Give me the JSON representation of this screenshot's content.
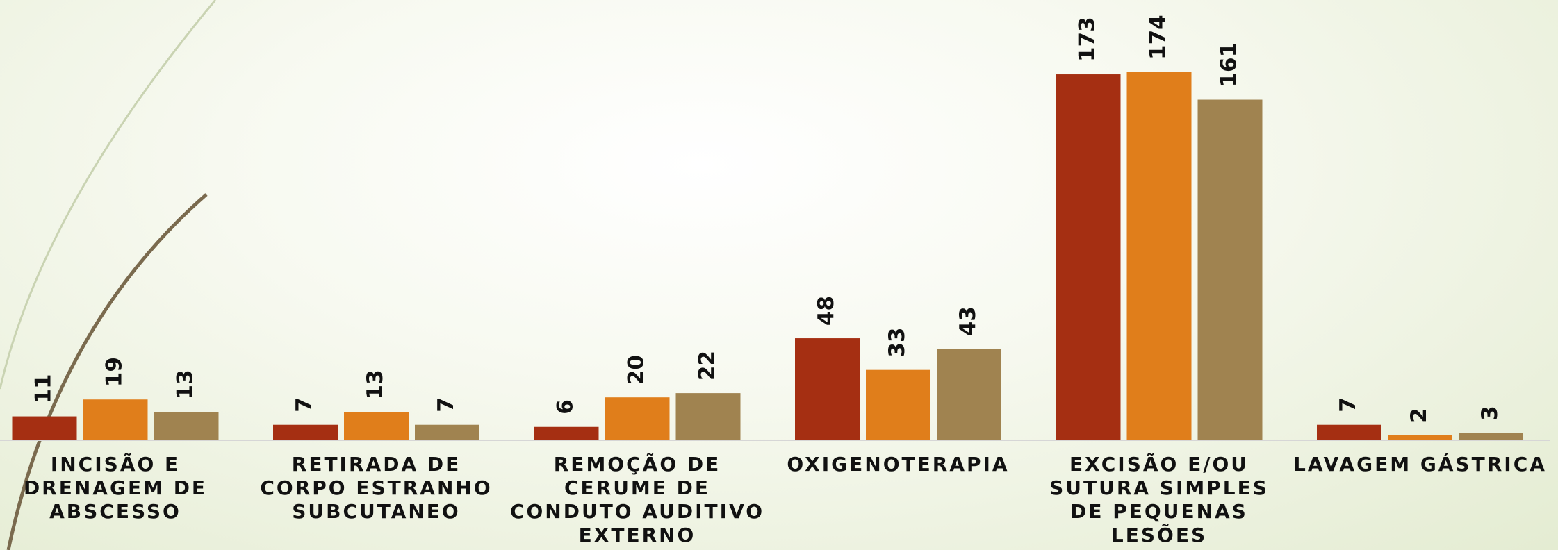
{
  "chart_data": {
    "type": "bar",
    "categories": [
      "INCISÃO E DRENAGEM DE ABSCESSO",
      "RETIRADA DE CORPO ESTRANHO SUBCUTANEO",
      "REMOÇÃO DE CERUME DE CONDUTO AUDITIVO EXTERNO",
      "OXIGENOTERAPIA",
      "EXCISÃO E/OU SUTURA SIMPLES DE PEQUENAS LESÕES",
      "LAVAGEM GÁSTRICA"
    ],
    "series": [
      {
        "color": "#a52f12",
        "values": [
          11,
          7,
          6,
          48,
          173,
          7
        ]
      },
      {
        "color": "#e07e1b",
        "values": [
          19,
          13,
          20,
          33,
          174,
          2
        ]
      },
      {
        "color": "#a08350",
        "values": [
          13,
          7,
          22,
          43,
          161,
          3
        ]
      }
    ]
  }
}
